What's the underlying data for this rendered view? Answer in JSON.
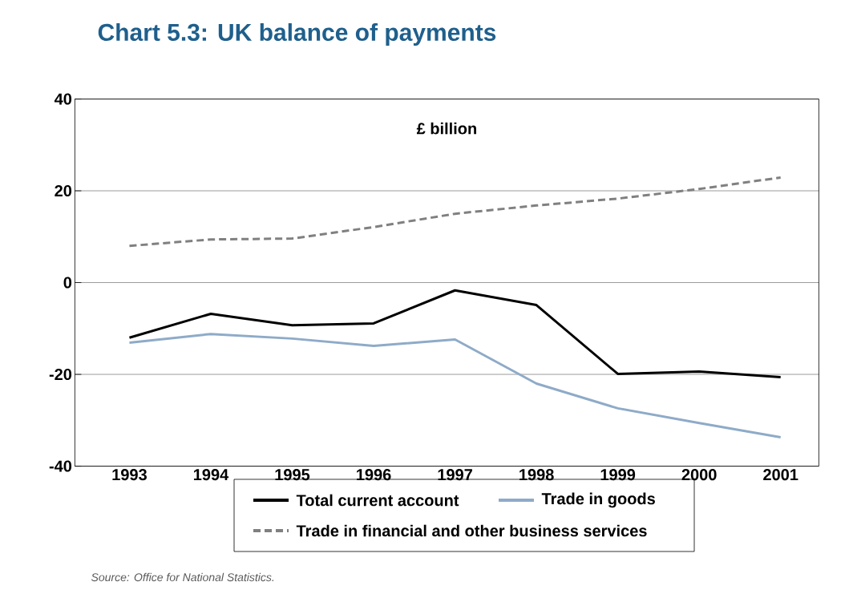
{
  "chart_data": {
    "type": "line",
    "title": "Chart 5.3: UK balance of payments",
    "categories": [
      "1993",
      "1994",
      "1995",
      "1996",
      "1997",
      "1998",
      "1999",
      "2000",
      "2001"
    ],
    "series": [
      {
        "name": "Total current account",
        "color": "#000000",
        "line_style": "solid",
        "values": [
          -12.0,
          -6.8,
          -9.3,
          -8.9,
          -1.7,
          -4.9,
          -19.9,
          -19.4,
          -20.6
        ]
      },
      {
        "name": "Trade in goods",
        "color": "#8eabc8",
        "line_style": "solid",
        "values": [
          -13.1,
          -11.2,
          -12.2,
          -13.8,
          -12.4,
          -22.0,
          -27.4,
          -30.6,
          -33.7
        ]
      },
      {
        "name": "Trade in financial and other business services",
        "color": "#808080",
        "line_style": "dashed",
        "values": [
          8.0,
          9.4,
          9.6,
          12.1,
          15.0,
          16.8,
          18.3,
          20.4,
          22.9
        ]
      }
    ],
    "ylim": [
      -40,
      40
    ],
    "yticks": [
      -40,
      -20,
      0,
      20,
      40
    ],
    "grid": "y",
    "legend": "bottom",
    "marker": "none",
    "annotations": [
      "£ billion",
      "Source: Office for National Statistics."
    ]
  }
}
